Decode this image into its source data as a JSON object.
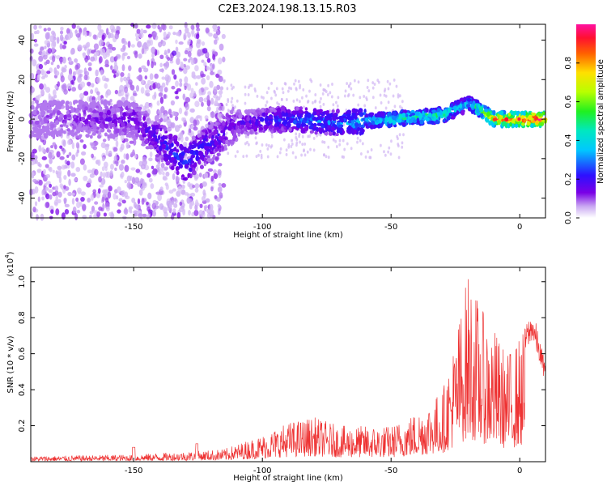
{
  "title": "C2E3.2024.198.13.15.R03",
  "chart_data": [
    {
      "type": "heatmap",
      "xlabel": "Height of straight line (km)",
      "ylabel": "Frequency (Hz)",
      "xlim": [
        -190,
        10
      ],
      "ylim": [
        -50,
        48
      ],
      "xticks": [
        -150,
        -100,
        -50,
        0
      ],
      "yticks": [
        -40,
        -20,
        0,
        20,
        40
      ],
      "colorbar": {
        "label": "Normalized spectral amplitude",
        "range": [
          0.0,
          1.0
        ],
        "ticks": [
          0.0,
          0.2,
          0.4,
          0.6,
          0.8
        ],
        "colormap": "rainbow (white-violet-blue-cyan-green-yellow-red-magenta)"
      },
      "ridge": [
        {
          "x": -185,
          "f": 0,
          "amp": 0.1
        },
        {
          "x": -150,
          "f": 0,
          "amp": 0.15
        },
        {
          "x": -130,
          "f": -22,
          "amp": 0.25
        },
        {
          "x": -110,
          "f": -2,
          "amp": 0.15
        },
        {
          "x": -90,
          "f": 0,
          "amp": 0.25
        },
        {
          "x": -70,
          "f": -2,
          "amp": 0.3
        },
        {
          "x": -50,
          "f": 0,
          "amp": 0.45
        },
        {
          "x": -30,
          "f": 2,
          "amp": 0.45
        },
        {
          "x": -20,
          "f": 8,
          "amp": 0.35
        },
        {
          "x": -10,
          "f": 0,
          "amp": 0.8
        },
        {
          "x": 5,
          "f": 0,
          "amp": 0.95
        }
      ]
    },
    {
      "type": "line",
      "xlabel": "Height of straight line (km)",
      "ylabel": "SNR (10 * v/v)",
      "ymultiplier": "(x10",
      "ymultiplier_exp": "4",
      "xlim": [
        -190,
        10
      ],
      "ylim": [
        0,
        1.08
      ],
      "xticks": [
        -150,
        -100,
        -50,
        0
      ],
      "yticks": [
        0.2,
        0.4,
        0.6,
        0.8,
        1.0
      ],
      "line_color": "#ee3333",
      "envelope": [
        {
          "x": -190,
          "y": 0.03
        },
        {
          "x": -150,
          "y": 0.04
        },
        {
          "x": -125,
          "y": 0.06
        },
        {
          "x": -115,
          "y": 0.07
        },
        {
          "x": -100,
          "y": 0.15
        },
        {
          "x": -90,
          "y": 0.22
        },
        {
          "x": -80,
          "y": 0.25
        },
        {
          "x": -70,
          "y": 0.2
        },
        {
          "x": -50,
          "y": 0.2
        },
        {
          "x": -40,
          "y": 0.28
        },
        {
          "x": -30,
          "y": 0.4
        },
        {
          "x": -25,
          "y": 0.7
        },
        {
          "x": -20,
          "y": 1.07
        },
        {
          "x": -15,
          "y": 0.85
        },
        {
          "x": -10,
          "y": 0.75
        },
        {
          "x": -5,
          "y": 0.6
        },
        {
          "x": 0,
          "y": 0.7
        },
        {
          "x": 5,
          "y": 0.85
        },
        {
          "x": 10,
          "y": 0.55
        }
      ]
    }
  ]
}
